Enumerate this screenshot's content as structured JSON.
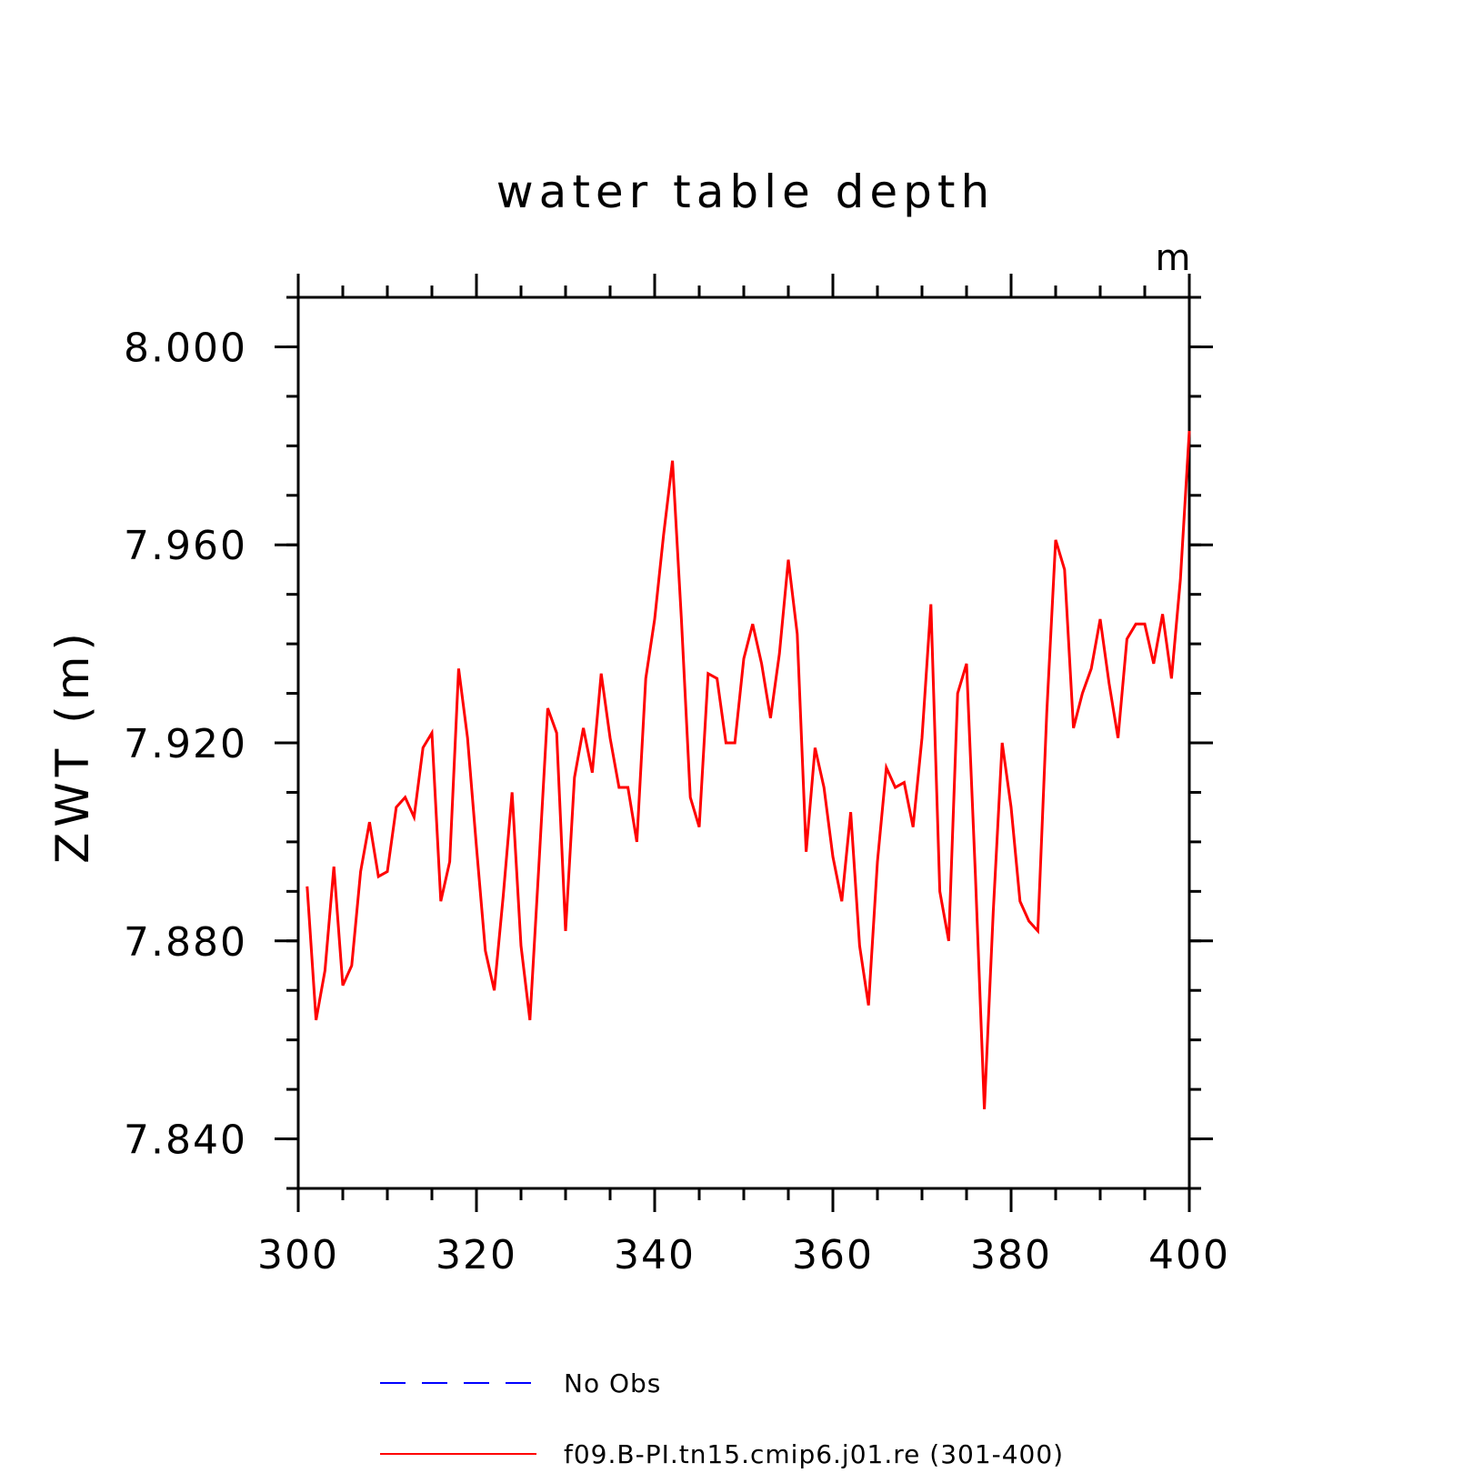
{
  "chart_data": {
    "type": "line",
    "title": "water table depth",
    "xlabel": "",
    "ylabel": "ZWT  (m)",
    "units": "m",
    "xlim": [
      300,
      400
    ],
    "ylim": [
      7.83,
      8.01
    ],
    "x_ticks": [
      300,
      320,
      340,
      360,
      380,
      400
    ],
    "x_tick_labels": [
      "300",
      "320",
      "340",
      "360",
      "380",
      "400"
    ],
    "x_minor_step": 5,
    "y_ticks": [
      7.84,
      7.88,
      7.92,
      7.96,
      8.0
    ],
    "y_tick_labels": [
      "7.840",
      "7.880",
      "7.920",
      "7.960",
      "8.000"
    ],
    "y_minor_step": 0.01,
    "grid": false,
    "legend_position": "bottom",
    "series": [
      {
        "name": "No Obs",
        "color": "#0000ff",
        "dash": "dashed",
        "x": [],
        "y": []
      },
      {
        "name": "f09.B-PI.tn15.cmip6.j01.re (301-400)",
        "color": "#ff0000",
        "dash": "solid",
        "x": [
          301,
          302,
          303,
          304,
          305,
          306,
          307,
          308,
          309,
          310,
          311,
          312,
          313,
          314,
          315,
          316,
          317,
          318,
          319,
          320,
          321,
          322,
          323,
          324,
          325,
          326,
          327,
          328,
          329,
          330,
          331,
          332,
          333,
          334,
          335,
          336,
          337,
          338,
          339,
          340,
          341,
          342,
          343,
          344,
          345,
          346,
          347,
          348,
          349,
          350,
          351,
          352,
          353,
          354,
          355,
          356,
          357,
          358,
          359,
          360,
          361,
          362,
          363,
          364,
          365,
          366,
          367,
          368,
          369,
          370,
          371,
          372,
          373,
          374,
          375,
          376,
          377,
          378,
          379,
          380,
          381,
          382,
          383,
          384,
          385,
          386,
          387,
          388,
          389,
          390,
          391,
          392,
          393,
          394,
          395,
          396,
          397,
          398,
          399,
          400
        ],
        "y": [
          7.891,
          7.864,
          7.874,
          7.895,
          7.871,
          7.875,
          7.894,
          7.904,
          7.893,
          7.894,
          7.907,
          7.909,
          7.905,
          7.919,
          7.922,
          7.888,
          7.896,
          7.935,
          7.921,
          7.899,
          7.878,
          7.87,
          7.889,
          7.91,
          7.879,
          7.864,
          7.895,
          7.927,
          7.922,
          7.882,
          7.913,
          7.923,
          7.914,
          7.934,
          7.921,
          7.911,
          7.911,
          7.9,
          7.933,
          7.945,
          7.962,
          7.977,
          7.945,
          7.909,
          7.903,
          7.934,
          7.933,
          7.92,
          7.92,
          7.937,
          7.944,
          7.936,
          7.925,
          7.938,
          7.957,
          7.942,
          7.898,
          7.919,
          7.911,
          7.897,
          7.888,
          7.906,
          7.879,
          7.867,
          7.896,
          7.915,
          7.911,
          7.912,
          7.903,
          7.921,
          7.948,
          7.89,
          7.88,
          7.93,
          7.936,
          7.893,
          7.846,
          7.886,
          7.92,
          7.907,
          7.888,
          7.884,
          7.882,
          7.926,
          7.961,
          7.955,
          7.923,
          7.93,
          7.935,
          7.945,
          7.932,
          7.921,
          7.941,
          7.944,
          7.944,
          7.936,
          7.946,
          7.933,
          7.953,
          7.983
        ]
      }
    ]
  }
}
